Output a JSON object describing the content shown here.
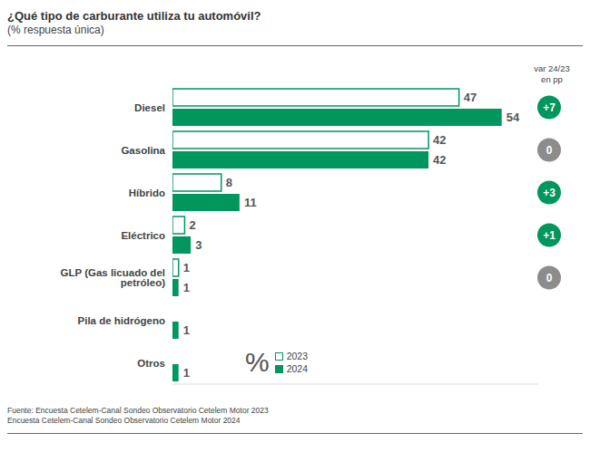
{
  "chart_data": {
    "type": "bar",
    "orientation": "horizontal",
    "title": "¿Qué tipo de carburante utiliza tu automóvil?",
    "subtitle": "(% respuesta única)",
    "categories": [
      "Diesel",
      "Gasolina",
      "Híbrido",
      "Eléctrico",
      "GLP (Gas licuado del petróleo)",
      "Pila de hidrógeno",
      "Otros"
    ],
    "series": [
      {
        "name": "2023",
        "color": "#00965e",
        "values": [
          47,
          42,
          8,
          2,
          1,
          null,
          null
        ]
      },
      {
        "name": "2024",
        "color": "#00965e",
        "values": [
          54,
          42,
          11,
          3,
          1,
          1,
          1
        ]
      }
    ],
    "xlim": [
      0,
      60
    ],
    "tick_labels": "y",
    "grid": false,
    "data_labels": true,
    "legend": "bottom",
    "legend_title": "%",
    "variation": {
      "title": "var 24/23\nen pp",
      "values": [
        7,
        0,
        3,
        1,
        0,
        null,
        null
      ],
      "value_labels": [
        "+7",
        "0",
        "+3",
        "+1",
        "0",
        null,
        null
      ],
      "colors": [
        "#00965e",
        "#8c8c8c",
        "#00965e",
        "#00965e",
        "#8c8c8c",
        null,
        null
      ]
    },
    "source": [
      "Fuente: Encuesta Cetelem-Canal Sondeo Observatorio Cetelem Motor 2023",
      "Encuesta Cetelem-Canal Sondeo Observatorio Cetelem Motor 2024"
    ]
  }
}
